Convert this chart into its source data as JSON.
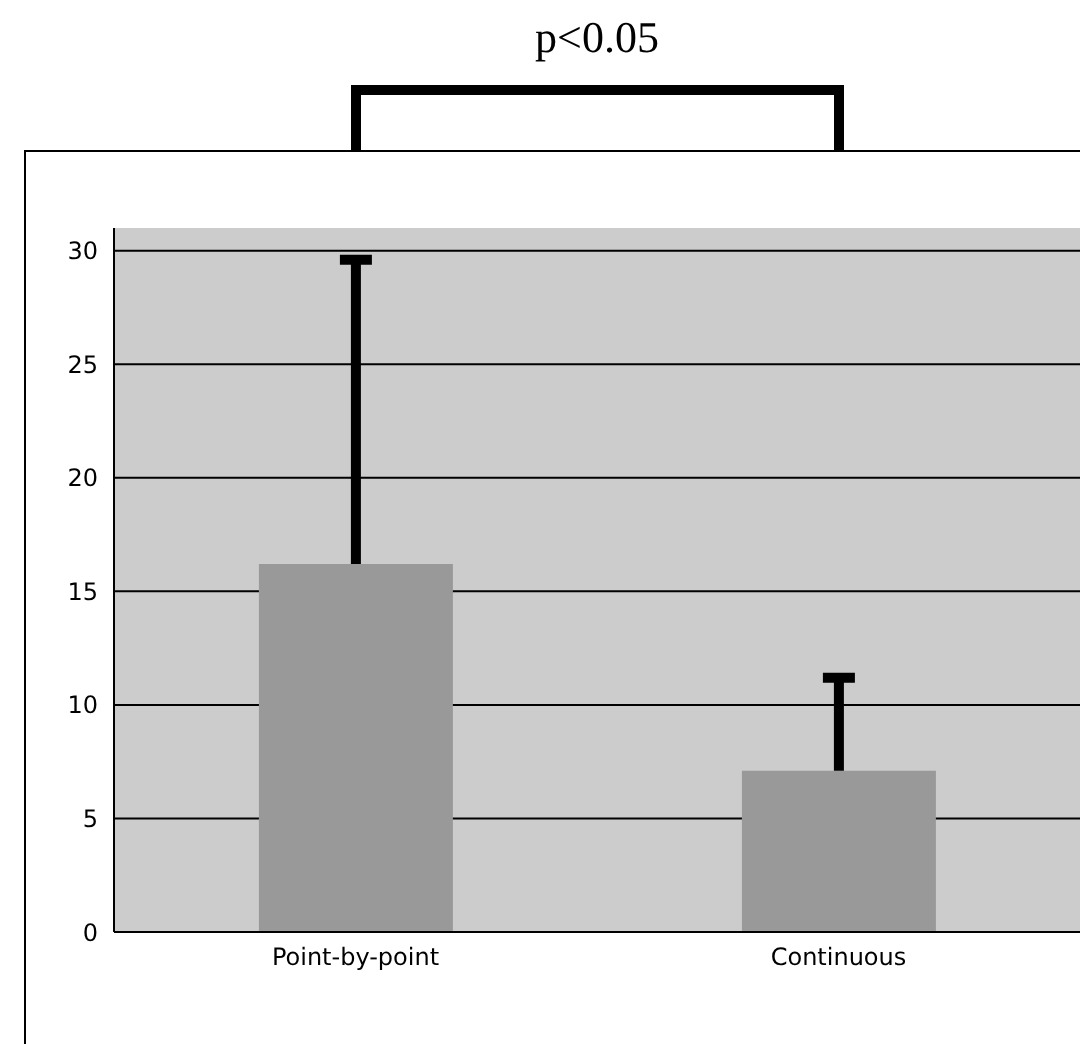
{
  "chart_data": {
    "type": "bar",
    "categories": [
      "Point-by-point",
      "Continuous"
    ],
    "values": [
      16.2,
      7.1
    ],
    "color": "#999999",
    "errors": [
      [
        16.2,
        29.6
      ],
      [
        7.1,
        11.2
      ]
    ],
    "ylim": [
      0,
      31
    ],
    "yticks": [
      0,
      5,
      10,
      15,
      20,
      25,
      30
    ],
    "grid": "y",
    "annotations": [
      "p<0.05"
    ]
  }
}
